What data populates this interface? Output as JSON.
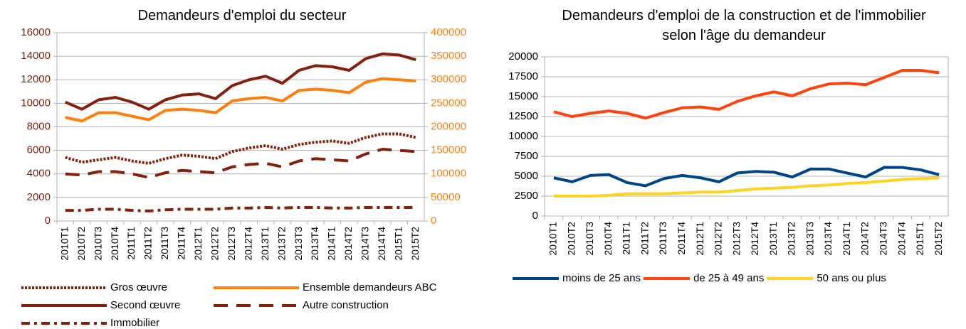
{
  "chart_data": [
    {
      "type": "line",
      "title": "Demandeurs d'emploi du secteur",
      "categories": [
        "2010T1",
        "2010T2",
        "2010T3",
        "2010T4",
        "2011T1",
        "2011T2",
        "2011T3",
        "2011T4",
        "2012T1",
        "2012T2",
        "2012T3",
        "2012T4",
        "2013T1",
        "2013T2",
        "2013T3",
        "2013T4",
        "2014T1",
        "2014T2",
        "2014T3",
        "2014T4",
        "2015T1",
        "2015T2"
      ],
      "ylim": [
        0,
        16000
      ],
      "yticks": [
        0,
        2000,
        4000,
        6000,
        8000,
        10000,
        12000,
        14000,
        16000
      ],
      "ycolor": "#85200c",
      "y2lim": [
        0,
        400000
      ],
      "y2ticks": [
        0,
        50000,
        100000,
        150000,
        200000,
        250000,
        300000,
        350000,
        400000
      ],
      "y2color": "#ff7f0e",
      "grid": true,
      "legend": "bottom",
      "series": [
        {
          "name": "Gros œuvre",
          "color": "#85200c",
          "linestyle": "dotted",
          "values": [
            5400,
            5000,
            5200,
            5400,
            5100,
            4900,
            5300,
            5600,
            5500,
            5300,
            5900,
            6200,
            6400,
            6100,
            6500,
            6700,
            6800,
            6600,
            7100,
            7400,
            7400,
            7100
          ]
        },
        {
          "name": "Ensemble demandeurs ABC",
          "color": "#ff7f0e",
          "linestyle": "solid",
          "axis": "y2",
          "values": [
            220000,
            212500,
            230000,
            230000,
            222500,
            215000,
            235000,
            237500,
            235000,
            230000,
            255000,
            260000,
            262500,
            255000,
            277500,
            280000,
            277500,
            272500,
            295000,
            302500,
            300000,
            297500
          ]
        },
        {
          "name": "Second œuvre",
          "color": "#85200c",
          "linestyle": "solid",
          "values": [
            10100,
            9500,
            10300,
            10500,
            10100,
            9500,
            10300,
            10700,
            10800,
            10400,
            11500,
            12000,
            12300,
            11700,
            12800,
            13200,
            13100,
            12800,
            13800,
            14200,
            14100,
            13700
          ]
        },
        {
          "name": "Autre construction",
          "color": "#85200c",
          "linestyle": "dashed",
          "values": [
            4000,
            3900,
            4200,
            4200,
            4000,
            3700,
            4100,
            4300,
            4200,
            4100,
            4600,
            4800,
            4900,
            4600,
            5100,
            5300,
            5200,
            5100,
            5700,
            6100,
            6000,
            5900
          ]
        },
        {
          "name": "Immobilier",
          "color": "#85200c",
          "linestyle": "dashdot",
          "values": [
            900,
            900,
            1000,
            1000,
            900,
            850,
            950,
            1000,
            1000,
            1000,
            1100,
            1100,
            1150,
            1100,
            1150,
            1150,
            1100,
            1100,
            1150,
            1150,
            1150,
            1150
          ]
        }
      ]
    },
    {
      "type": "line",
      "title": "Demandeurs d'emploi de la construction et de l'immobilier selon l'âge du demandeur",
      "categories": [
        "2010T1",
        "2010T2",
        "2010T3",
        "2010T4",
        "2011T1",
        "2011T2",
        "2011T3",
        "2011T4",
        "2012T1",
        "2012T2",
        "2012T3",
        "2012T4",
        "2013T1",
        "2013T2",
        "2013T3",
        "2013T4",
        "2014T1",
        "2014T2",
        "2014T3",
        "2014T4",
        "2015T1",
        "2015T2"
      ],
      "ylim": [
        0,
        20000
      ],
      "yticks": [
        0,
        2500,
        5000,
        7500,
        10000,
        12500,
        15000,
        17500,
        20000
      ],
      "ycolor": "#000000",
      "grid": true,
      "legend": "bottom",
      "series": [
        {
          "name": "moins de 25 ans",
          "color": "#004586",
          "linestyle": "solid",
          "values": [
            4800,
            4300,
            5100,
            5200,
            4200,
            3800,
            4700,
            5100,
            4800,
            4300,
            5400,
            5600,
            5500,
            4900,
            5900,
            5900,
            5400,
            4900,
            6100,
            6100,
            5800,
            5200
          ]
        },
        {
          "name": "de 25 à 49 ans",
          "color": "#ff420e",
          "linestyle": "solid",
          "values": [
            13100,
            12500,
            12900,
            13200,
            12900,
            12300,
            13000,
            13600,
            13700,
            13400,
            14400,
            15100,
            15600,
            15100,
            16000,
            16600,
            16700,
            16500,
            17400,
            18300,
            18300,
            18000
          ]
        },
        {
          "name": "50 ans ou plus",
          "color": "#ffd320",
          "linestyle": "solid",
          "values": [
            2500,
            2500,
            2500,
            2600,
            2800,
            2800,
            2800,
            2900,
            3000,
            3000,
            3200,
            3400,
            3500,
            3600,
            3800,
            3900,
            4100,
            4200,
            4400,
            4600,
            4700,
            4800
          ]
        }
      ]
    }
  ]
}
